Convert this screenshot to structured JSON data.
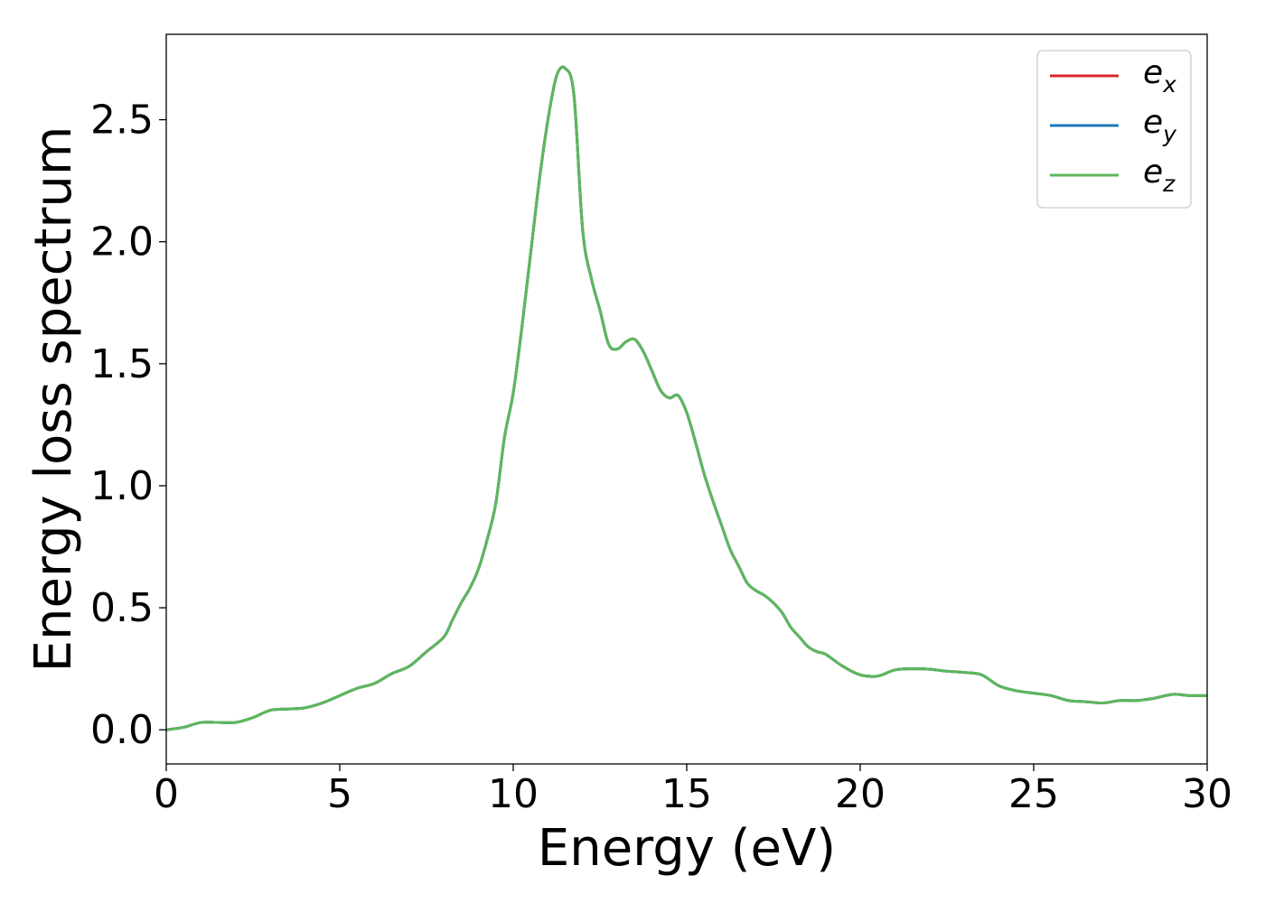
{
  "chart_data": {
    "type": "line",
    "title": "",
    "xlabel": "Energy (eV)",
    "ylabel": "Energy loss spectrum",
    "xlim": [
      0,
      30
    ],
    "ylim": [
      -0.14,
      2.85
    ],
    "xticks": [
      0,
      5,
      10,
      15,
      20,
      25,
      30
    ],
    "xtick_labels": [
      "0",
      "5",
      "10",
      "15",
      "20",
      "25",
      "30"
    ],
    "yticks": [
      0.0,
      0.5,
      1.0,
      1.5,
      2.0,
      2.5
    ],
    "ytick_labels": [
      "0.0",
      "0.5",
      "1.0",
      "1.5",
      "2.0",
      "2.5"
    ],
    "grid": false,
    "legend_position": "top-right",
    "x": [
      0,
      0.5,
      1,
      1.5,
      2,
      2.5,
      3,
      3.5,
      4,
      4.5,
      5,
      5.5,
      6,
      6.5,
      7,
      7.5,
      8,
      8.25,
      8.5,
      8.75,
      9,
      9.25,
      9.5,
      9.75,
      10,
      10.25,
      10.5,
      10.75,
      11,
      11.25,
      11.5,
      11.75,
      12,
      12.25,
      12.5,
      12.75,
      13,
      13.25,
      13.5,
      13.75,
      14,
      14.25,
      14.5,
      14.75,
      15,
      15.25,
      15.5,
      15.75,
      16,
      16.25,
      16.5,
      16.75,
      17,
      17.25,
      17.5,
      17.75,
      18,
      18.25,
      18.5,
      18.75,
      19,
      19.5,
      20,
      20.5,
      21,
      21.5,
      22,
      22.5,
      23,
      23.5,
      24,
      24.5,
      25,
      25.5,
      26,
      26.5,
      27,
      27.5,
      28,
      28.5,
      29,
      29.5,
      30
    ],
    "series": [
      {
        "name": "e",
        "name_sub": "x",
        "color": "#d62728",
        "values": [
          0.0,
          0.01,
          0.03,
          0.03,
          0.03,
          0.05,
          0.08,
          0.085,
          0.09,
          0.11,
          0.14,
          0.17,
          0.19,
          0.23,
          0.26,
          0.32,
          0.38,
          0.45,
          0.52,
          0.58,
          0.66,
          0.78,
          0.93,
          1.2,
          1.38,
          1.65,
          1.95,
          2.25,
          2.5,
          2.68,
          2.71,
          2.6,
          2.05,
          1.85,
          1.72,
          1.58,
          1.56,
          1.59,
          1.6,
          1.55,
          1.47,
          1.39,
          1.36,
          1.37,
          1.3,
          1.18,
          1.05,
          0.94,
          0.84,
          0.74,
          0.67,
          0.6,
          0.57,
          0.55,
          0.52,
          0.48,
          0.42,
          0.38,
          0.34,
          0.32,
          0.31,
          0.26,
          0.225,
          0.22,
          0.245,
          0.25,
          0.248,
          0.24,
          0.235,
          0.225,
          0.18,
          0.16,
          0.15,
          0.14,
          0.12,
          0.115,
          0.11,
          0.12,
          0.12,
          0.13,
          0.145,
          0.14,
          0.14
        ]
      },
      {
        "name": "e",
        "name_sub": "y",
        "color": "#1f77b4",
        "values": [
          0.0,
          0.01,
          0.03,
          0.03,
          0.03,
          0.05,
          0.08,
          0.085,
          0.09,
          0.11,
          0.14,
          0.17,
          0.19,
          0.23,
          0.26,
          0.32,
          0.38,
          0.45,
          0.52,
          0.58,
          0.66,
          0.78,
          0.93,
          1.2,
          1.38,
          1.65,
          1.95,
          2.25,
          2.5,
          2.68,
          2.71,
          2.6,
          2.05,
          1.85,
          1.72,
          1.58,
          1.56,
          1.59,
          1.6,
          1.55,
          1.47,
          1.39,
          1.36,
          1.37,
          1.3,
          1.18,
          1.05,
          0.94,
          0.84,
          0.74,
          0.67,
          0.6,
          0.57,
          0.55,
          0.52,
          0.48,
          0.42,
          0.38,
          0.34,
          0.32,
          0.31,
          0.26,
          0.225,
          0.22,
          0.245,
          0.25,
          0.248,
          0.24,
          0.235,
          0.225,
          0.18,
          0.16,
          0.15,
          0.14,
          0.12,
          0.115,
          0.11,
          0.12,
          0.12,
          0.13,
          0.145,
          0.14,
          0.14
        ]
      },
      {
        "name": "e",
        "name_sub": "z",
        "color": "#5cb85c",
        "values": [
          0.0,
          0.01,
          0.03,
          0.03,
          0.03,
          0.05,
          0.08,
          0.085,
          0.09,
          0.11,
          0.14,
          0.17,
          0.19,
          0.23,
          0.26,
          0.32,
          0.38,
          0.45,
          0.52,
          0.58,
          0.66,
          0.78,
          0.93,
          1.2,
          1.38,
          1.65,
          1.95,
          2.25,
          2.5,
          2.68,
          2.71,
          2.6,
          2.05,
          1.85,
          1.72,
          1.58,
          1.56,
          1.59,
          1.6,
          1.55,
          1.47,
          1.39,
          1.36,
          1.37,
          1.3,
          1.18,
          1.05,
          0.94,
          0.84,
          0.74,
          0.67,
          0.6,
          0.57,
          0.55,
          0.52,
          0.48,
          0.42,
          0.38,
          0.34,
          0.32,
          0.31,
          0.26,
          0.225,
          0.22,
          0.245,
          0.25,
          0.248,
          0.24,
          0.235,
          0.225,
          0.18,
          0.16,
          0.15,
          0.14,
          0.12,
          0.115,
          0.11,
          0.12,
          0.12,
          0.13,
          0.145,
          0.14,
          0.14
        ]
      }
    ]
  }
}
